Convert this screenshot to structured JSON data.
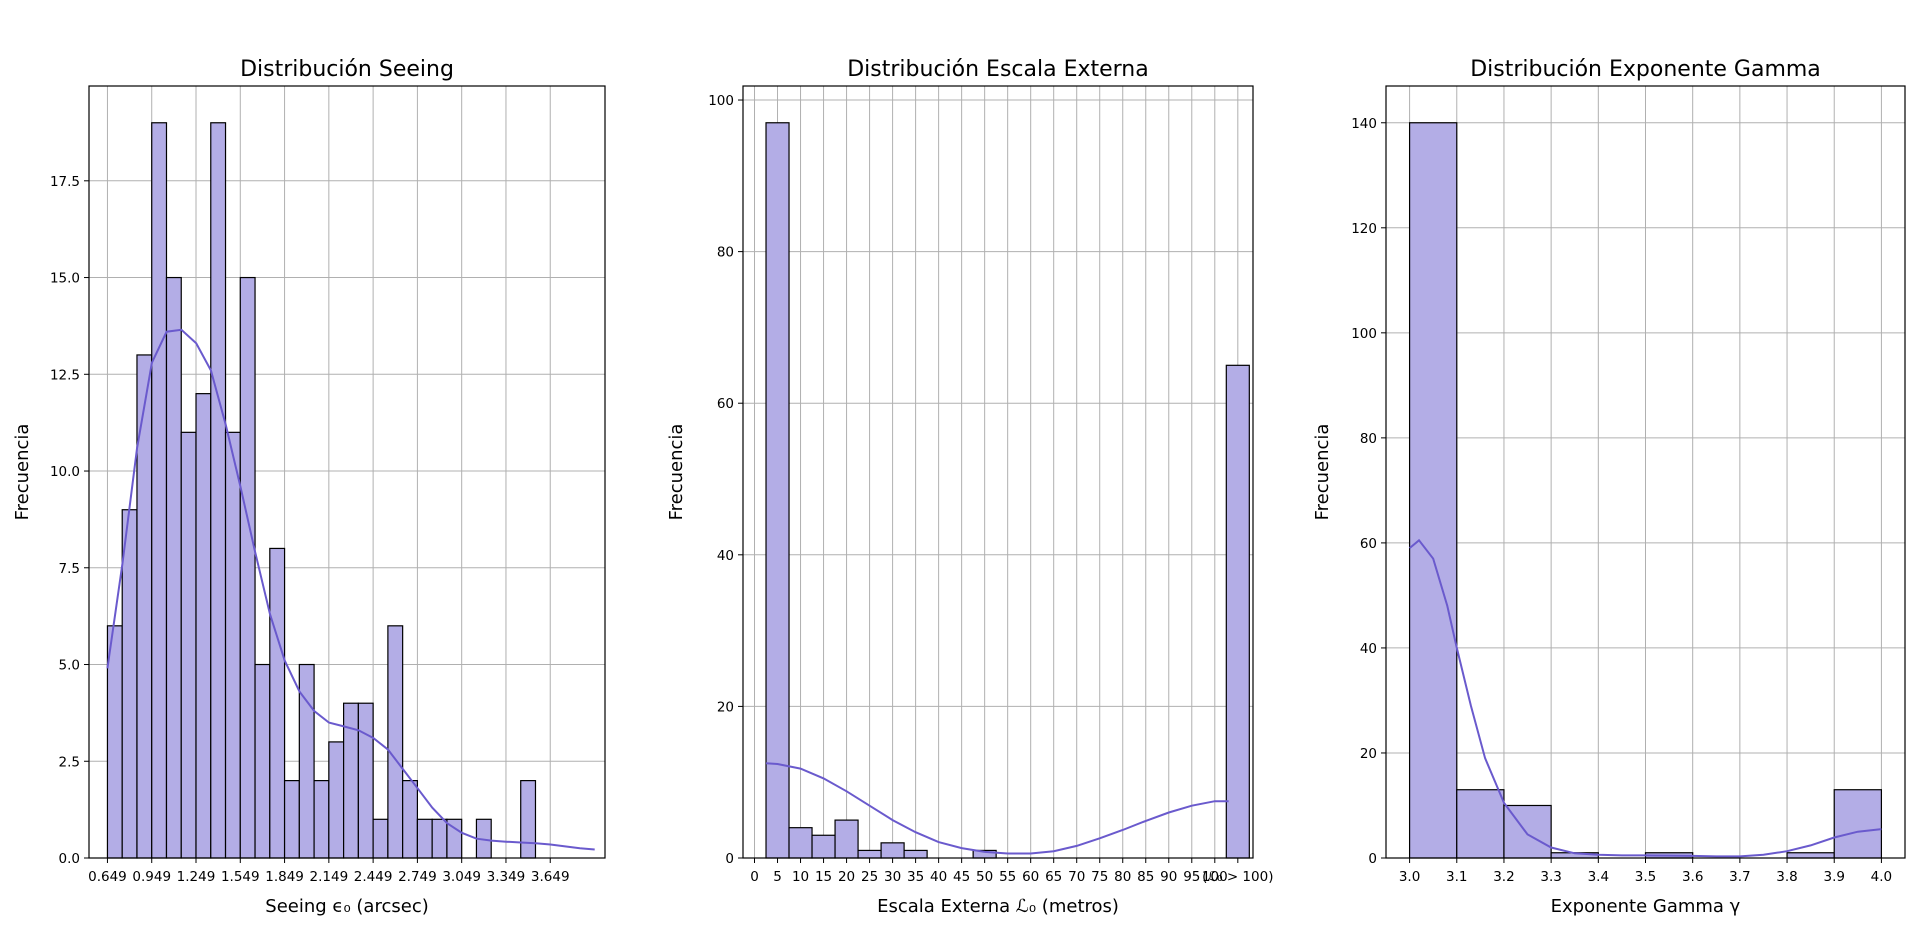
{
  "chart_data": [
    {
      "type": "bar",
      "title": "Distribución Seeing",
      "xlabel": "Seeing ϵ₀ (arcsec)",
      "ylabel": "Frecuencia",
      "xlim": [
        0.524,
        4.02
      ],
      "ylim": [
        0,
        19.95
      ],
      "grid": true,
      "bar_color": "#b3ade6",
      "kde_color": "#6a5acd",
      "x_ticks": [
        0.649,
        0.949,
        1.249,
        1.549,
        1.849,
        2.149,
        2.449,
        2.749,
        3.049,
        3.349,
        3.649
      ],
      "x_tick_labels": [
        "0.649",
        "0.949",
        "1.249",
        "1.549",
        "1.849",
        "2.149",
        "2.449",
        "2.749",
        "3.049",
        "3.349",
        "3.649"
      ],
      "y_ticks": [
        0,
        2.5,
        5,
        7.5,
        10,
        12.5,
        15,
        17.5
      ],
      "y_tick_labels": [
        "0.0",
        "2.5",
        "5.0",
        "7.5",
        "10.0",
        "12.5",
        "15.0",
        "17.5"
      ],
      "bin_width": 0.1,
      "bin_edges_start": [
        0.649,
        0.749,
        0.849,
        0.949,
        1.049,
        1.149,
        1.249,
        1.349,
        1.449,
        1.549,
        1.649,
        1.749,
        1.849,
        1.949,
        2.049,
        2.149,
        2.249,
        2.349,
        2.449,
        2.549,
        2.649,
        2.749,
        2.849,
        2.949,
        3.049,
        3.149,
        3.249,
        3.349,
        3.449,
        3.549
      ],
      "values": [
        6,
        9,
        13,
        19,
        15,
        11,
        12,
        19,
        11,
        15,
        5,
        8,
        2,
        5,
        2,
        3,
        4,
        4,
        1,
        6,
        2,
        1,
        1,
        1,
        0,
        1,
        0,
        0,
        2,
        0
      ],
      "kde": {
        "x": [
          0.649,
          0.75,
          0.85,
          0.95,
          1.05,
          1.15,
          1.25,
          1.35,
          1.45,
          1.55,
          1.65,
          1.75,
          1.85,
          1.95,
          2.05,
          2.15,
          2.25,
          2.35,
          2.45,
          2.55,
          2.65,
          2.75,
          2.85,
          2.95,
          3.05,
          3.15,
          3.25,
          3.35,
          3.45,
          3.55,
          3.65,
          3.75,
          3.85,
          3.95
        ],
        "y": [
          4.9,
          7.6,
          10.6,
          12.8,
          13.6,
          13.65,
          13.3,
          12.6,
          11.2,
          9.6,
          7.9,
          6.3,
          5.1,
          4.3,
          3.8,
          3.5,
          3.4,
          3.3,
          3.1,
          2.8,
          2.3,
          1.8,
          1.3,
          0.9,
          0.65,
          0.5,
          0.45,
          0.42,
          0.4,
          0.38,
          0.35,
          0.3,
          0.25,
          0.22
        ]
      }
    },
    {
      "type": "bar",
      "title": "Distribución Escala Externa",
      "xlabel": "Escala Externa ℒ₀ (metros)",
      "ylabel": "Frecuencia",
      "xlim": [
        -2.5,
        108.3
      ],
      "ylim": [
        0,
        101.85
      ],
      "grid": true,
      "bar_color": "#b3ade6",
      "kde_color": "#6a5acd",
      "x_ticks": [
        0,
        5,
        10,
        15,
        20,
        25,
        30,
        35,
        40,
        45,
        50,
        55,
        60,
        65,
        70,
        75,
        80,
        85,
        90,
        95,
        100,
        105
      ],
      "x_tick_labels": [
        "0",
        "5",
        "10",
        "15",
        "20",
        "25",
        "30",
        "35",
        "40",
        "45",
        "50",
        "55",
        "60",
        "65",
        "70",
        "75",
        "80",
        "85",
        "90",
        "95",
        "100",
        "(ℒ₀ > 100)"
      ],
      "y_ticks": [
        0,
        20,
        40,
        60,
        80,
        100
      ],
      "y_tick_labels": [
        "0",
        "20",
        "40",
        "60",
        "80",
        "100"
      ],
      "bin_width": 5,
      "bin_edges_start": [
        2.5,
        7.5,
        12.5,
        17.5,
        22.5,
        27.5,
        32.5,
        37.5,
        42.5,
        47.5,
        52.5,
        57.5,
        62.5,
        67.5,
        72.5,
        77.5,
        82.5,
        87.5,
        92.5,
        97.5,
        102.5
      ],
      "values": [
        97,
        4,
        3,
        5,
        1,
        2,
        1,
        0,
        0,
        1,
        0,
        0,
        0,
        0,
        0,
        0,
        0,
        0,
        0,
        0,
        65
      ],
      "kde": {
        "x": [
          2.5,
          5,
          10,
          15,
          20,
          25,
          30,
          35,
          40,
          45,
          50,
          55,
          60,
          65,
          70,
          75,
          80,
          85,
          90,
          95,
          100,
          103
        ],
        "y": [
          12.5,
          12.4,
          11.8,
          10.5,
          8.8,
          6.9,
          5.0,
          3.4,
          2.1,
          1.3,
          0.8,
          0.6,
          0.6,
          0.9,
          1.6,
          2.6,
          3.7,
          4.9,
          6.0,
          6.9,
          7.5,
          7.5
        ]
      }
    },
    {
      "type": "bar",
      "title": "Distribución Exponente Gamma",
      "xlabel": "Exponente Gamma γ",
      "ylabel": "Frecuencia",
      "xlim": [
        2.95,
        4.05
      ],
      "ylim": [
        0,
        147
      ],
      "grid": true,
      "bar_color": "#b3ade6",
      "kde_color": "#6a5acd",
      "x_ticks": [
        3.0,
        3.1,
        3.2,
        3.3,
        3.4,
        3.5,
        3.6,
        3.7,
        3.8,
        3.9,
        4.0
      ],
      "x_tick_labels": [
        "3.0",
        "3.1",
        "3.2",
        "3.3",
        "3.4",
        "3.5",
        "3.6",
        "3.7",
        "3.8",
        "3.9",
        "4.0"
      ],
      "y_ticks": [
        0,
        20,
        40,
        60,
        80,
        100,
        120,
        140
      ],
      "y_tick_labels": [
        "0",
        "20",
        "40",
        "60",
        "80",
        "100",
        "120",
        "140"
      ],
      "bin_width": 0.1,
      "bin_edges_start": [
        3.0,
        3.1,
        3.2,
        3.3,
        3.4,
        3.5,
        3.6,
        3.7,
        3.8,
        3.9
      ],
      "values": [
        140,
        13,
        10,
        1,
        0,
        1,
        0,
        0,
        1,
        13
      ],
      "kde": {
        "x": [
          3.0,
          3.02,
          3.05,
          3.08,
          3.1,
          3.13,
          3.16,
          3.2,
          3.25,
          3.3,
          3.35,
          3.4,
          3.45,
          3.5,
          3.55,
          3.6,
          3.65,
          3.7,
          3.75,
          3.8,
          3.85,
          3.9,
          3.95,
          4.0
        ],
        "y": [
          59,
          60.5,
          57,
          48,
          40,
          29,
          19,
          10.5,
          4.5,
          2.0,
          0.9,
          0.6,
          0.5,
          0.5,
          0.45,
          0.4,
          0.3,
          0.3,
          0.6,
          1.3,
          2.4,
          3.9,
          5.0,
          5.5
        ]
      }
    }
  ]
}
